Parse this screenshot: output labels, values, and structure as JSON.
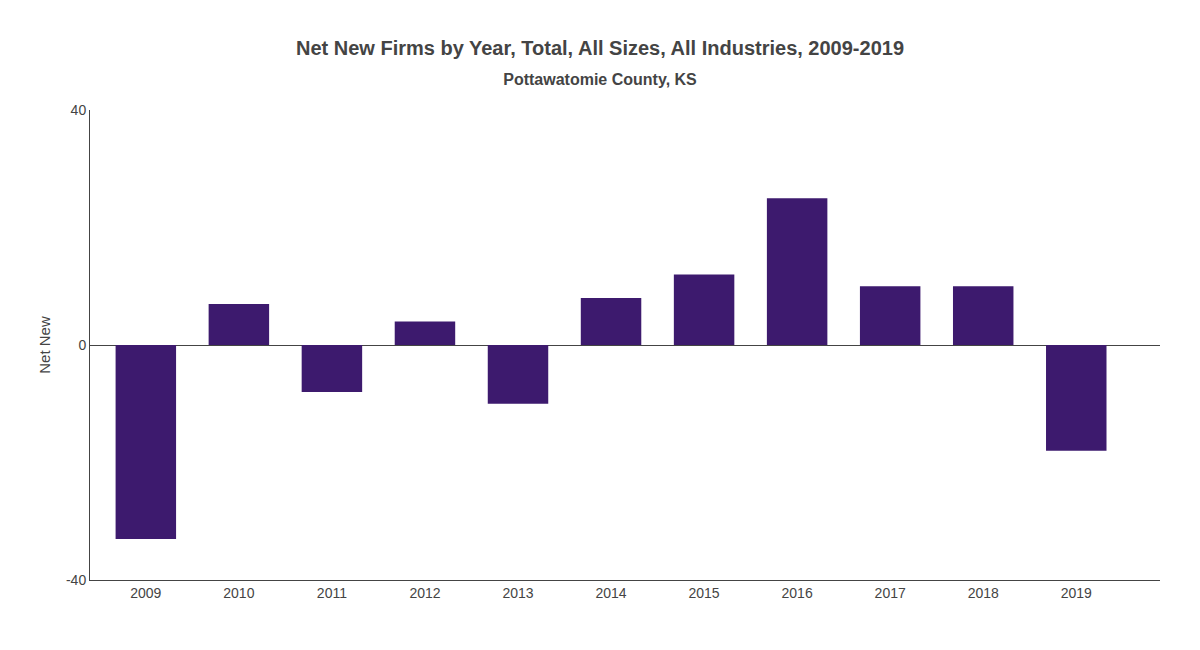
{
  "chart_data": {
    "type": "bar",
    "title": "Net New Firms by Year, Total, All Sizes, All Industries, 2009-2019",
    "subtitle": "Pottawatomie County, KS",
    "ylabel": "Net New",
    "x": [
      2009,
      2010,
      2011,
      2012,
      2013,
      2014,
      2015,
      2016,
      2017,
      2018,
      2019
    ],
    "values": [
      -33,
      7,
      -8,
      4,
      -10,
      8,
      12,
      25,
      10,
      10,
      -18
    ],
    "color": "#3d1a6e",
    "xlim": [
      2008.4,
      2019.9
    ],
    "xticks": [
      2009,
      2010,
      2011,
      2012,
      2013,
      2014,
      2015,
      2016,
      2017,
      2018,
      2019
    ],
    "ylim": [
      -40,
      40
    ],
    "yticks": [
      -40,
      0,
      40
    ],
    "grid": false
  }
}
